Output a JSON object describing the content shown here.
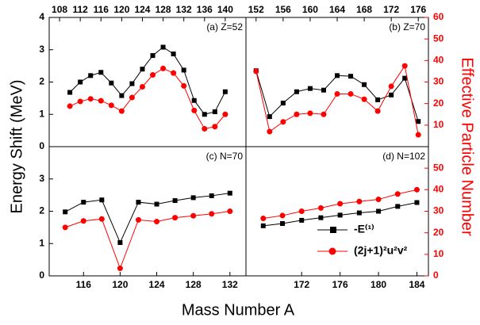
{
  "axes": {
    "xlabel": "Mass Number A",
    "ylabel": "Energy Shift (MeV)",
    "y2label": "Effective Particle Number",
    "y2color": "#ff0000"
  },
  "chart_data": [
    {
      "type": "line",
      "annotation": "(a) Z=52",
      "x": [
        110,
        112,
        114,
        116,
        118,
        120,
        122,
        124,
        126,
        128,
        130,
        132,
        134,
        136,
        138,
        140
      ],
      "xlim": [
        106,
        144
      ],
      "xticks": [
        108,
        112,
        116,
        120,
        124,
        128,
        132,
        136,
        140
      ],
      "xticks_side": "top",
      "ylim": [
        0,
        4
      ],
      "yticks": [
        0,
        1,
        2,
        3,
        4
      ],
      "y2lim": [
        0,
        60
      ],
      "series": [
        {
          "color": "#000000",
          "values": [
            1.68,
            2.0,
            2.2,
            2.3,
            1.97,
            1.58,
            1.95,
            2.4,
            2.82,
            3.08,
            2.87,
            2.37,
            1.43,
            1.0,
            1.08,
            1.7
          ]
        },
        {
          "color": "#ff0000",
          "axis": "y2",
          "values": [
            18.8,
            21,
            22.2,
            21.3,
            19.2,
            16.5,
            22.8,
            27.8,
            33.3,
            36.3,
            34.2,
            28.2,
            16.8,
            8.3,
            9.3,
            15
          ]
        }
      ]
    },
    {
      "type": "line",
      "annotation": "(b) Z=70",
      "x": [
        152,
        154,
        156,
        158,
        160,
        162,
        164,
        166,
        168,
        170,
        172,
        174,
        176
      ],
      "xlim": [
        150.5,
        177.5
      ],
      "xticks": [
        152,
        156,
        160,
        164,
        168,
        172,
        176
      ],
      "xticks_side": "top",
      "ylim": [
        0,
        4
      ],
      "y2lim": [
        0,
        60
      ],
      "y2ticks": [
        10,
        20,
        30,
        40,
        50,
        60
      ],
      "series": [
        {
          "color": "#000000",
          "values": [
            2.35,
            0.93,
            1.35,
            1.7,
            1.8,
            1.75,
            2.2,
            2.18,
            1.92,
            1.45,
            1.6,
            2.12,
            0.78
          ]
        },
        {
          "color": "#ff0000",
          "axis": "y2",
          "values": [
            35,
            7,
            11.5,
            15,
            15.5,
            15,
            24.5,
            24.5,
            22,
            16.5,
            28,
            37.5,
            5.5
          ]
        }
      ]
    },
    {
      "type": "line",
      "annotation": "(c) N=70",
      "x": [
        114,
        116,
        118,
        120,
        122,
        124,
        126,
        128,
        130,
        132
      ],
      "xlim": [
        112.25,
        133.75
      ],
      "xticks": [
        116,
        120,
        124,
        128,
        132
      ],
      "xticks_side": "bottom",
      "ylim": [
        0,
        4
      ],
      "yticks": [
        0,
        1,
        2,
        3
      ],
      "y2lim": [
        0,
        60
      ],
      "series": [
        {
          "color": "#000000",
          "values": [
            1.98,
            2.28,
            2.35,
            1.03,
            2.28,
            2.22,
            2.33,
            2.42,
            2.48,
            2.56
          ]
        },
        {
          "color": "#ff0000",
          "axis": "y2",
          "values": [
            22.5,
            25.5,
            26.4,
            3.5,
            26,
            25.2,
            27,
            27.9,
            28.8,
            30
          ]
        }
      ]
    },
    {
      "type": "line",
      "annotation": "(d) N=102",
      "x": [
        168,
        170,
        172,
        174,
        176,
        178,
        180,
        182,
        184
      ],
      "xlim": [
        166.2,
        185.2
      ],
      "xticks": [
        172,
        176,
        180,
        184
      ],
      "xticks_side": "bottom",
      "ylim": [
        0,
        4
      ],
      "y2lim": [
        0,
        60
      ],
      "y2ticks": [
        0,
        10,
        20,
        30,
        40,
        50
      ],
      "legend": "lower right",
      "series": [
        {
          "name": "-E⁽¹⁾",
          "color": "#000000",
          "values": [
            1.55,
            1.62,
            1.72,
            1.8,
            1.88,
            1.95,
            2.0,
            2.15,
            2.27
          ]
        },
        {
          "name": "(2j+1)²u²v²",
          "color": "#ff0000",
          "axis": "y2",
          "values": [
            26.7,
            28,
            30,
            31.5,
            33.5,
            34.5,
            35.5,
            38,
            40
          ]
        }
      ]
    }
  ]
}
